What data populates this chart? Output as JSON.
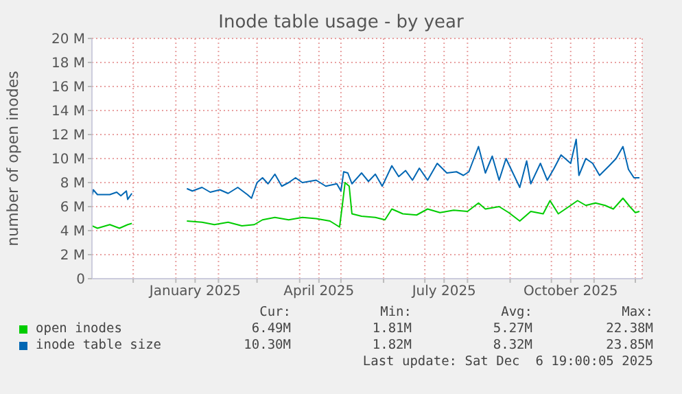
{
  "chart_data": {
    "type": "line",
    "title": "Inode table usage - by year",
    "ylabel": "number of open inodes",
    "xlim": [
      "2024-11-01",
      "2025-12-06"
    ],
    "xticks": [
      {
        "value": "2024-12-01",
        "label": null
      },
      {
        "value": "2025-01-01",
        "label": null
      },
      {
        "value": "2025-01-15",
        "label": "January 2025"
      },
      {
        "value": "2025-02-01",
        "label": null
      },
      {
        "value": "2025-03-01",
        "label": null
      },
      {
        "value": "2025-04-01",
        "label": null
      },
      {
        "value": "2025-04-15",
        "label": "April 2025"
      },
      {
        "value": "2025-05-01",
        "label": null
      },
      {
        "value": "2025-06-01",
        "label": null
      },
      {
        "value": "2025-07-01",
        "label": null
      },
      {
        "value": "2025-07-15",
        "label": "July 2025"
      },
      {
        "value": "2025-08-01",
        "label": null
      },
      {
        "value": "2025-09-01",
        "label": null
      },
      {
        "value": "2025-10-01",
        "label": null
      },
      {
        "value": "2025-10-15",
        "label": "October 2025"
      },
      {
        "value": "2025-11-01",
        "label": null
      },
      {
        "value": "2025-12-01",
        "label": null
      }
    ],
    "ylim": [
      0,
      20
    ],
    "yticks": [
      0,
      {
        "value": 2,
        "label": "2 M"
      },
      {
        "value": 4,
        "label": "4 M"
      },
      {
        "value": 6,
        "label": "6 M"
      },
      {
        "value": 8,
        "label": "8 M"
      },
      {
        "value": 10,
        "label": "10 M"
      },
      {
        "value": 12,
        "label": "12 M"
      },
      {
        "value": 14,
        "label": "14 M"
      },
      {
        "value": 16,
        "label": "16 M"
      },
      {
        "value": 18,
        "label": "18 M"
      },
      {
        "value": 20,
        "label": "20 M"
      }
    ],
    "grid": true,
    "legend": "bottom",
    "marker": "none",
    "line_style": "solid",
    "annotations": [
      "Cur:",
      "Min:",
      "Avg:",
      "Max:",
      "6.49M",
      "1.81M",
      "5.27M",
      "22.38M",
      "10.30M",
      "1.82M",
      "8.32M",
      "23.85M",
      "Last update: Sat Dec  6 19:00:05 2025"
    ],
    "series": [
      {
        "name": "open inodes",
        "color": "#00cc00",
        "x": [
          "2024-11-01",
          "2024-11-05",
          "2024-11-14",
          "2024-11-21",
          "2024-11-27",
          "2024-11-30",
          "2024-12-15",
          "2025-01-09",
          "2025-01-20",
          "2025-01-29",
          "2025-02-08",
          "2025-02-18",
          "2025-02-27",
          "2025-03-05",
          "2025-03-14",
          "2025-03-24",
          "2025-04-03",
          "2025-04-13",
          "2025-04-23",
          "2025-04-30",
          "2025-05-02",
          "2025-05-04",
          "2025-05-07",
          "2025-05-09",
          "2025-05-16",
          "2025-05-26",
          "2025-06-02",
          "2025-06-07",
          "2025-06-15",
          "2025-06-25",
          "2025-07-03",
          "2025-07-12",
          "2025-07-22",
          "2025-08-01",
          "2025-08-09",
          "2025-08-14",
          "2025-08-24",
          "2025-08-31",
          "2025-09-08",
          "2025-09-16",
          "2025-09-25",
          "2025-09-30",
          "2025-10-06",
          "2025-10-15",
          "2025-10-20",
          "2025-10-26",
          "2025-11-02",
          "2025-11-09",
          "2025-11-15",
          "2025-11-22",
          "2025-11-27",
          "2025-12-01",
          "2025-12-04"
        ],
        "values": [
          4.4,
          4.2,
          4.5,
          4.2,
          4.5,
          4.6,
          null,
          4.8,
          4.7,
          4.5,
          4.7,
          4.4,
          4.5,
          4.9,
          5.1,
          4.9,
          5.1,
          5.0,
          4.8,
          4.3,
          6.1,
          8.0,
          7.7,
          5.4,
          5.2,
          5.1,
          4.9,
          5.8,
          5.4,
          5.3,
          5.8,
          5.5,
          5.7,
          5.6,
          6.3,
          5.8,
          6.0,
          5.5,
          4.8,
          5.6,
          5.4,
          6.5,
          5.4,
          6.1,
          6.5,
          6.1,
          6.3,
          6.1,
          5.8,
          6.7,
          6.0,
          5.5,
          5.6
        ]
      },
      {
        "name": "inode table size",
        "color": "#0066b3",
        "x": [
          "2024-11-01",
          "2024-11-02",
          "2024-11-05",
          "2024-11-14",
          "2024-11-19",
          "2024-11-22",
          "2024-11-26",
          "2024-11-27",
          "2024-11-30",
          "2024-12-15",
          "2025-01-09",
          "2025-01-13",
          "2025-01-20",
          "2025-01-26",
          "2025-02-02",
          "2025-02-08",
          "2025-02-15",
          "2025-02-22",
          "2025-02-25",
          "2025-03-01",
          "2025-03-05",
          "2025-03-09",
          "2025-03-14",
          "2025-03-19",
          "2025-03-24",
          "2025-03-29",
          "2025-04-03",
          "2025-04-13",
          "2025-04-20",
          "2025-04-28",
          "2025-05-01",
          "2025-05-03",
          "2025-05-06",
          "2025-05-09",
          "2025-05-16",
          "2025-05-21",
          "2025-05-26",
          "2025-05-31",
          "2025-06-07",
          "2025-06-12",
          "2025-06-17",
          "2025-06-22",
          "2025-06-27",
          "2025-07-03",
          "2025-07-10",
          "2025-07-17",
          "2025-07-24",
          "2025-07-29",
          "2025-08-02",
          "2025-08-09",
          "2025-08-14",
          "2025-08-19",
          "2025-08-24",
          "2025-08-29",
          "2025-09-03",
          "2025-09-08",
          "2025-09-13",
          "2025-09-16",
          "2025-09-23",
          "2025-09-28",
          "2025-10-03",
          "2025-10-08",
          "2025-10-15",
          "2025-10-19",
          "2025-10-21",
          "2025-10-26",
          "2025-10-31",
          "2025-11-05",
          "2025-11-12",
          "2025-11-17",
          "2025-11-22",
          "2025-11-26",
          "2025-11-30",
          "2025-12-04"
        ],
        "values": [
          6.9,
          7.4,
          7.0,
          7.0,
          7.2,
          6.9,
          7.3,
          6.6,
          7.1,
          null,
          7.5,
          7.3,
          7.6,
          7.2,
          7.4,
          7.1,
          7.6,
          7.0,
          6.7,
          8.0,
          8.4,
          7.9,
          8.7,
          7.7,
          8.0,
          8.4,
          8.0,
          8.2,
          7.7,
          7.9,
          7.3,
          8.9,
          8.8,
          7.9,
          8.8,
          8.1,
          8.7,
          7.7,
          9.4,
          8.5,
          9.0,
          8.2,
          9.2,
          8.2,
          9.6,
          8.8,
          8.9,
          8.6,
          8.9,
          11.0,
          8.8,
          10.2,
          8.2,
          10.0,
          8.8,
          7.6,
          9.8,
          7.9,
          9.6,
          8.2,
          9.2,
          10.3,
          9.6,
          11.6,
          8.6,
          10.0,
          9.6,
          8.6,
          9.4,
          10.0,
          11.0,
          9.1,
          8.4,
          8.4
        ]
      }
    ]
  }
}
